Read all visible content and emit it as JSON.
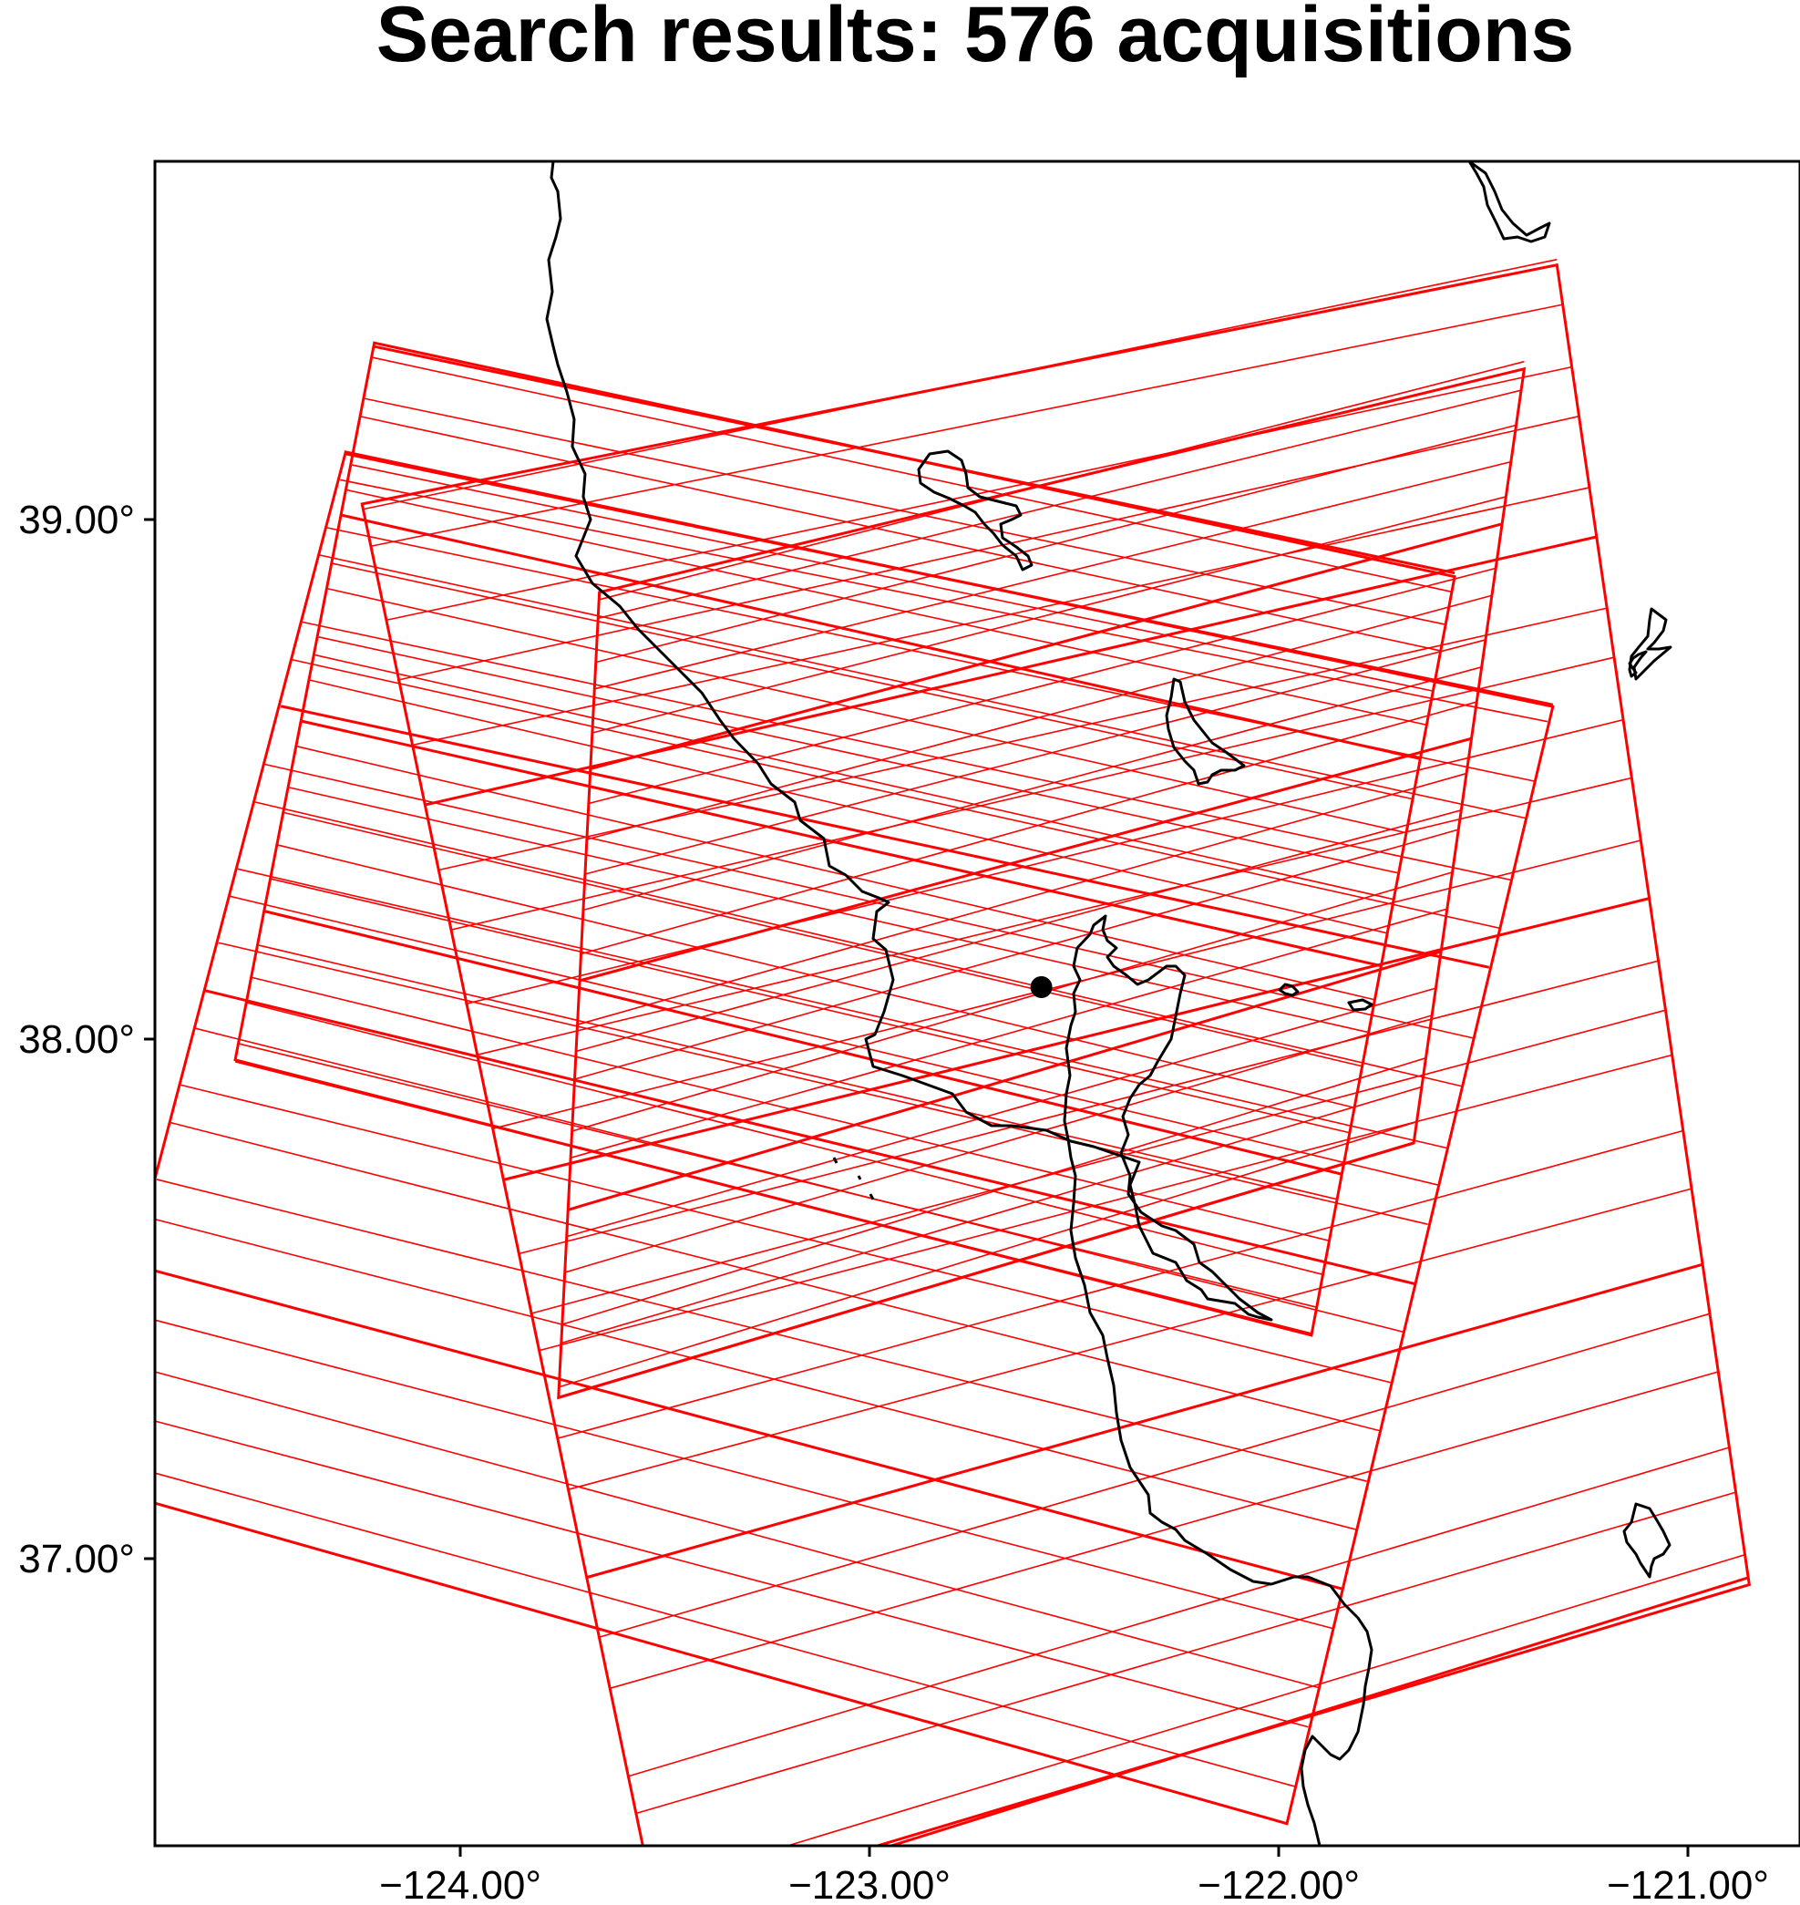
{
  "title": "Search results: 576 acquisitions",
  "map": {
    "colors": {
      "footprint": "#ff0000",
      "coastline": "#000000",
      "frame": "#000000",
      "marker": "#000000",
      "background": "#ffffff"
    },
    "lon_range": [
      -124.8,
      -120.8
    ],
    "lat_range": [
      36.4,
      39.7
    ],
    "x_ticks": [
      {
        "value": -124.0,
        "label": "−124.00°"
      },
      {
        "value": -123.0,
        "label": "−123.00°"
      },
      {
        "value": -122.0,
        "label": "−122.00°"
      },
      {
        "value": -121.0,
        "label": "−121.00°"
      }
    ],
    "y_ticks": [
      {
        "value": 39.0,
        "label": "39.00°"
      },
      {
        "value": 38.0,
        "label": "38.00°"
      },
      {
        "value": 37.0,
        "label": "37.00°"
      }
    ],
    "marker": {
      "lon": -122.58,
      "lat": 38.1,
      "symbol": "filled-circle"
    },
    "footprints": [
      {
        "orbit": "ascending",
        "corners": [
          [
            -123.76,
            37.31
          ],
          [
            -121.67,
            37.8
          ],
          [
            -121.4,
            39.29
          ],
          [
            -123.66,
            38.86
          ]
        ]
      },
      {
        "orbit": "descending",
        "corners": [
          [
            -124.21,
            39.34
          ],
          [
            -121.57,
            38.89
          ],
          [
            -121.92,
            37.43
          ],
          [
            -124.55,
            37.96
          ]
        ]
      },
      {
        "orbit": "ascending",
        "corners": [
          [
            -123.52,
            36.32
          ],
          [
            -120.85,
            36.95
          ],
          [
            -121.32,
            39.49
          ],
          [
            -124.24,
            39.03
          ]
        ]
      },
      {
        "orbit": "descending",
        "corners": [
          [
            -124.28,
            39.13
          ],
          [
            -121.33,
            38.64
          ],
          [
            -121.98,
            36.49
          ],
          [
            -124.94,
            37.15
          ]
        ]
      }
    ]
  }
}
